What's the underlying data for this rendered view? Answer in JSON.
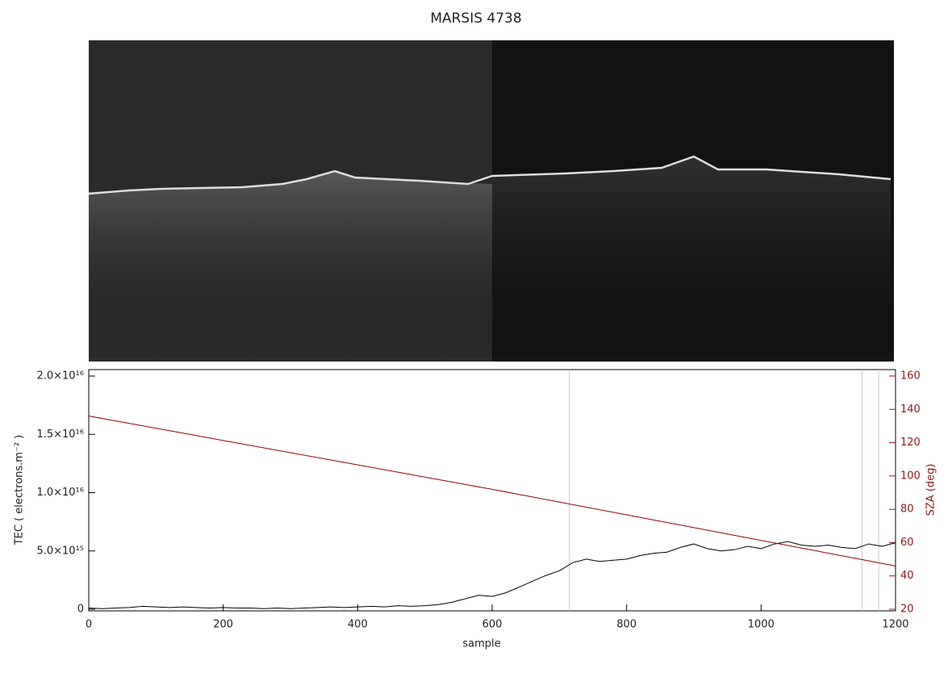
{
  "chart_data": {
    "type": "line",
    "title": "MARSIS 4738",
    "x_label": "sample",
    "y_label": "TEC ( electrons.m⁻² )",
    "y2_label": "SZA (deg)",
    "xlim": [
      0,
      1200
    ],
    "xticks": [
      0,
      200,
      400,
      600,
      800,
      1000,
      1200
    ],
    "ylim": [
      0,
      2e+16
    ],
    "yticks": [
      0,
      {
        "value": 5000000000000000.0,
        "label": "5.0×10¹⁵"
      },
      {
        "value": 1e+16,
        "label": "1.0×10¹⁶"
      },
      {
        "value": 1.5e+16,
        "label": "1.5×10¹⁶"
      },
      {
        "value": 2e+16,
        "label": "2.0×10¹⁶"
      }
    ],
    "y2lim": [
      20,
      160
    ],
    "y2ticks": [
      20,
      40,
      60,
      80,
      100,
      120,
      140,
      160
    ],
    "vlines": [
      715,
      1150,
      1175
    ],
    "vline_color": "#cccccc",
    "series": [
      {
        "name": "TEC",
        "color": "#000000",
        "x": [
          0,
          20,
          40,
          60,
          80,
          100,
          120,
          140,
          160,
          180,
          200,
          220,
          240,
          260,
          280,
          300,
          320,
          340,
          360,
          380,
          400,
          420,
          440,
          460,
          480,
          500,
          520,
          540,
          560,
          580,
          600,
          620,
          640,
          660,
          680,
          700,
          720,
          740,
          760,
          780,
          800,
          820,
          840,
          860,
          880,
          900,
          920,
          940,
          960,
          980,
          1000,
          1020,
          1040,
          1060,
          1080,
          1100,
          1120,
          1140,
          1160,
          1180,
          1200
        ],
        "values": [
          100000000000000.0,
          50000000000000.0,
          100000000000000.0,
          150000000000000.0,
          250000000000000.0,
          200000000000000.0,
          150000000000000.0,
          200000000000000.0,
          150000000000000.0,
          100000000000000.0,
          150000000000000.0,
          100000000000000.0,
          100000000000000.0,
          50000000000000.0,
          100000000000000.0,
          50000000000000.0,
          100000000000000.0,
          150000000000000.0,
          200000000000000.0,
          150000000000000.0,
          200000000000000.0,
          250000000000000.0,
          200000000000000.0,
          300000000000000.0,
          250000000000000.0,
          300000000000000.0,
          400000000000000.0,
          600000000000000.0,
          900000000000000.0,
          1200000000000000.0,
          1100000000000000.0,
          1400000000000000.0,
          1900000000000000.0,
          2400000000000000.0,
          2900000000000000.0,
          3300000000000000.0,
          4000000000000000.0,
          4300000000000000.0,
          4100000000000000.0,
          4200000000000000.0,
          4300000000000000.0,
          4600000000000000.0,
          4800000000000000.0,
          4900000000000000.0,
          5300000000000000.0,
          5600000000000000.0,
          5200000000000000.0,
          5000000000000000.0,
          5100000000000000.0,
          5400000000000000.0,
          5200000000000000.0,
          5600000000000000.0,
          5800000000000000.0,
          5500000000000000.0,
          5400000000000000.0,
          5500000000000000.0,
          5300000000000000.0,
          5200000000000000.0,
          5600000000000000.0,
          5400000000000000.0,
          5700000000000000.0
        ]
      },
      {
        "name": "SZA",
        "color": "#8b0000",
        "axis": "y2",
        "x": [
          0,
          600,
          1200
        ],
        "values": [
          136,
          92,
          46
        ]
      }
    ]
  }
}
